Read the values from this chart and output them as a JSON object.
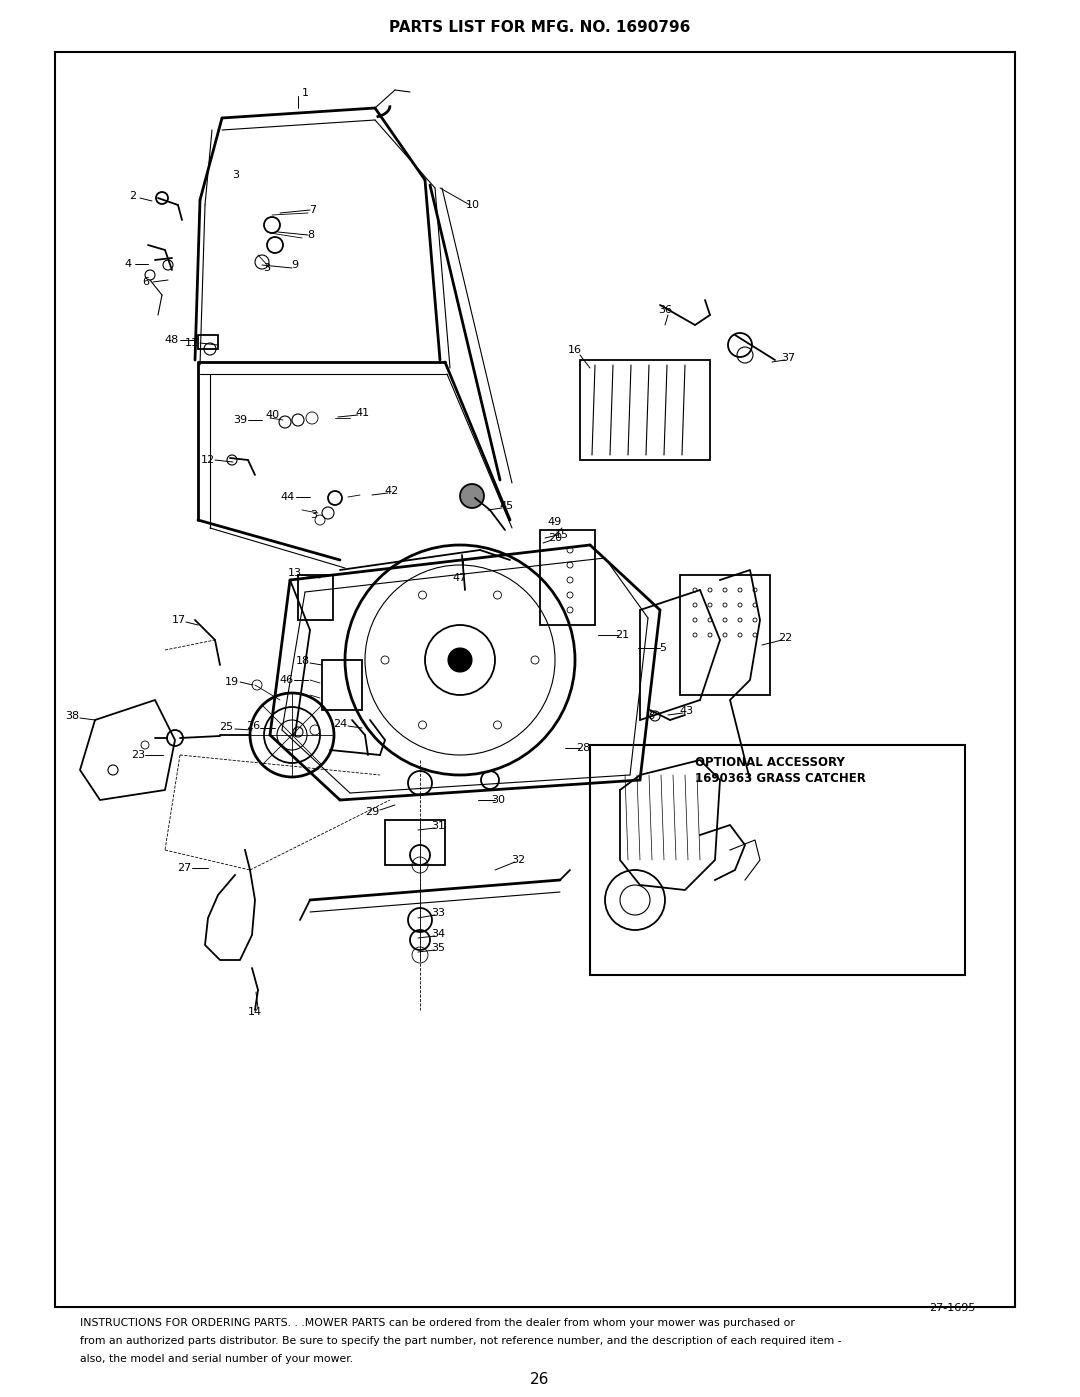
{
  "title": "PARTS LIST FOR MFG. NO. 1690796",
  "page_number": "26",
  "page_ref": "27-1695",
  "footer_line1": "INSTRUCTIONS FOR ORDERING PARTS. . .MOWER PARTS can be ordered from the dealer from whom your mower was purchased or",
  "footer_line2": "from an authorized parts distributor. Be sure to specify the part number, not reference number, and the description of each required item -",
  "footer_line3": "also, the model and serial number of your mower.",
  "optional_accessory_line1": "OPTIONAL ACCESSORY",
  "optional_accessory_line2": "1690363 GRASS CATCHER",
  "bg_color": "#ffffff",
  "border_color": "#000000",
  "text_color": "#000000"
}
